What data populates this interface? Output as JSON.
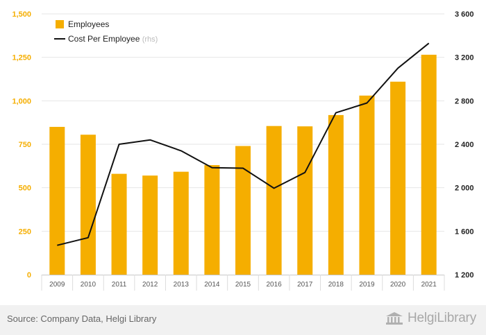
{
  "chart_data": {
    "type": "bar",
    "categories": [
      "2009",
      "2010",
      "2011",
      "2012",
      "2013",
      "2014",
      "2015",
      "2016",
      "2017",
      "2018",
      "2019",
      "2020",
      "2021"
    ],
    "series": [
      {
        "name": "Employees",
        "type": "bar",
        "axis": "left",
        "color": "#f5ae00",
        "values": [
          850,
          805,
          580,
          570,
          592,
          630,
          740,
          855,
          853,
          918,
          1030,
          1110,
          1265
        ]
      },
      {
        "name": "Cost Per Employee",
        "name_suffix": "(rhs)",
        "type": "line",
        "axis": "right",
        "color": "#111111",
        "values": [
          1470,
          1540,
          2400,
          2440,
          2340,
          2185,
          2180,
          1995,
          2140,
          2690,
          2780,
          3100,
          3330
        ]
      }
    ],
    "y_left": {
      "ylim": [
        0,
        1500
      ],
      "ticks": [
        0,
        250,
        500,
        750,
        1000,
        1250,
        1500
      ],
      "tick_labels": [
        "0",
        "250",
        "500",
        "750",
        "1,000",
        "1,250",
        "1,500"
      ],
      "color": "#f5ae00"
    },
    "y_right": {
      "ylim": [
        1200,
        3600
      ],
      "ticks": [
        1200,
        1600,
        2000,
        2400,
        2800,
        3200,
        3600
      ],
      "tick_labels": [
        "1 200",
        "1 600",
        "2 000",
        "2 400",
        "2 800",
        "3 200",
        "3 600"
      ],
      "color": "#222222"
    },
    "grid": true,
    "legend_position": "top-left",
    "xlabel": "",
    "ylabel": ""
  },
  "footer": {
    "source": "Source: Company Data, Helgi Library",
    "brand": "HelgiLibrary"
  }
}
